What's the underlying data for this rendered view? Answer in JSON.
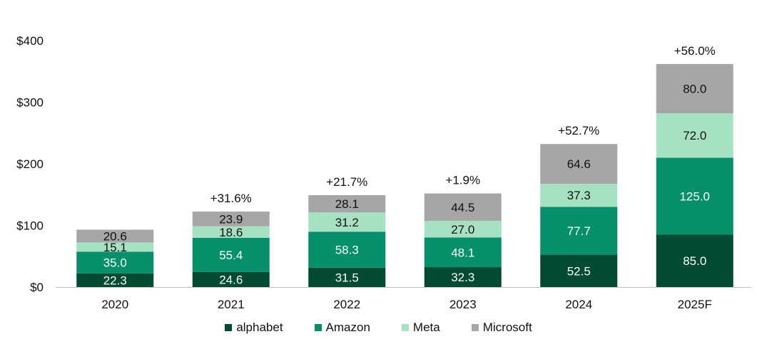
{
  "chart_data": {
    "type": "bar",
    "stacked": true,
    "categories": [
      "2020",
      "2021",
      "2022",
      "2023",
      "2024",
      "2025F"
    ],
    "series": [
      {
        "name": "alphabet",
        "color": "#014a33",
        "label_color": "#ffffff",
        "values": [
          22.3,
          24.6,
          31.5,
          32.3,
          52.5,
          85.0
        ]
      },
      {
        "name": "Amazon",
        "color": "#068f6b",
        "label_color": "#ffffff",
        "values": [
          35.0,
          55.4,
          58.3,
          48.1,
          77.7,
          125.0
        ]
      },
      {
        "name": "Meta",
        "color": "#a6e2c2",
        "label_color": "#111111",
        "values": [
          15.1,
          18.6,
          31.2,
          27.0,
          37.3,
          72.0
        ]
      },
      {
        "name": "Microsoft",
        "color": "#a6a6a6",
        "label_color": "#111111",
        "values": [
          20.6,
          23.9,
          28.1,
          44.5,
          64.6,
          80.0
        ]
      }
    ],
    "growth_labels": [
      "",
      "+31.6%",
      "+21.7%",
      "+1.9%",
      "+52.7%",
      "+56.0%"
    ],
    "y_ticks": [
      "$0",
      "$100",
      "$200",
      "$300",
      "$400"
    ],
    "y_tick_values": [
      0,
      100,
      200,
      300,
      400
    ],
    "ylim": [
      0,
      400
    ],
    "grid": false,
    "legend_position": "bottom"
  }
}
